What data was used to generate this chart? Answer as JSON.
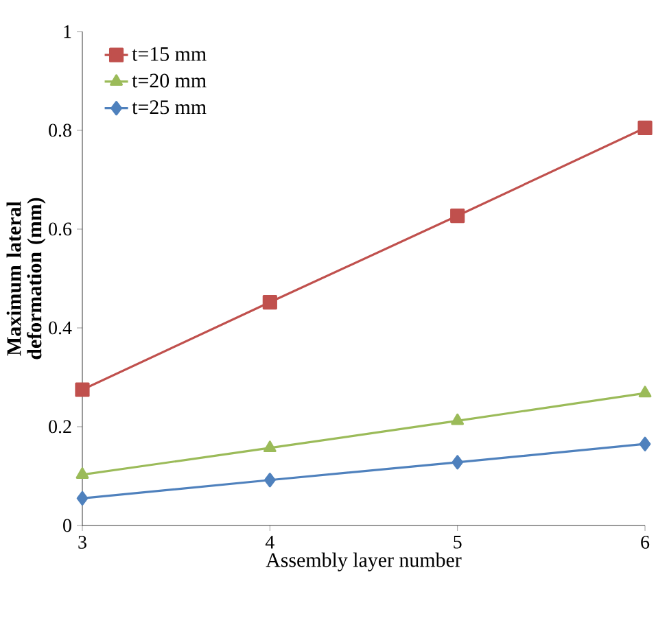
{
  "chart_data": {
    "type": "line",
    "xlabel": "Assembly layer number",
    "ylabel": "Maximum lateral deformation (mm)",
    "x": [
      3,
      4,
      5,
      6
    ],
    "xlim": [
      3,
      6
    ],
    "xticks": [
      3,
      4,
      5,
      6
    ],
    "ylim": [
      0,
      1
    ],
    "yticks": [
      0,
      0.2,
      0.4,
      0.6,
      0.8,
      1
    ],
    "grid": false,
    "legend": "top left",
    "series": [
      {
        "name": "t=15 mm",
        "color": "#c0504d",
        "marker": "square",
        "values": [
          0.275,
          0.452,
          0.627,
          0.805
        ]
      },
      {
        "name": "t=20 mm",
        "color": "#9bbb59",
        "marker": "triangle",
        "values": [
          0.103,
          0.157,
          0.212,
          0.268
        ]
      },
      {
        "name": "t=25 mm",
        "color": "#4f81bd",
        "marker": "diamond",
        "values": [
          0.055,
          0.092,
          0.128,
          0.165
        ]
      }
    ]
  }
}
